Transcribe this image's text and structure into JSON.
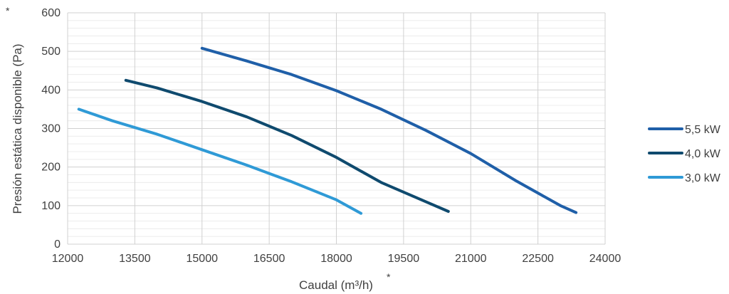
{
  "chart_data": {
    "type": "line",
    "xlabel": "Caudal (m³/h)",
    "ylabel": "Presión estática disponible (Pa)",
    "footnote_mark": "*",
    "xlim": [
      12000,
      24000
    ],
    "ylim": [
      0,
      600
    ],
    "xticks": [
      "12000",
      "13500",
      "15000",
      "16500",
      "18000",
      "19500",
      "21000",
      "22500",
      "24000"
    ],
    "yticks": [
      "0",
      "100",
      "200",
      "300",
      "400",
      "500",
      "600"
    ],
    "grid": true,
    "legend_position": "right",
    "series": [
      {
        "name": "5,5 kW",
        "color": "#1f5fa8",
        "x": [
          15000,
          16000,
          17000,
          18000,
          19000,
          20000,
          21000,
          22000,
          23000,
          23350
        ],
        "y": [
          508,
          475,
          440,
          398,
          350,
          295,
          235,
          165,
          100,
          82
        ]
      },
      {
        "name": "4,0 kW",
        "color": "#0f4a6e",
        "x": [
          13300,
          14000,
          15000,
          16000,
          17000,
          18000,
          19000,
          20000,
          20500
        ],
        "y": [
          425,
          405,
          370,
          330,
          282,
          225,
          160,
          110,
          85
        ]
      },
      {
        "name": "3,0 kW",
        "color": "#2f9ad6",
        "x": [
          12250,
          13000,
          14000,
          15000,
          16000,
          17000,
          18000,
          18550
        ],
        "y": [
          350,
          320,
          285,
          245,
          205,
          162,
          115,
          80
        ]
      }
    ]
  }
}
